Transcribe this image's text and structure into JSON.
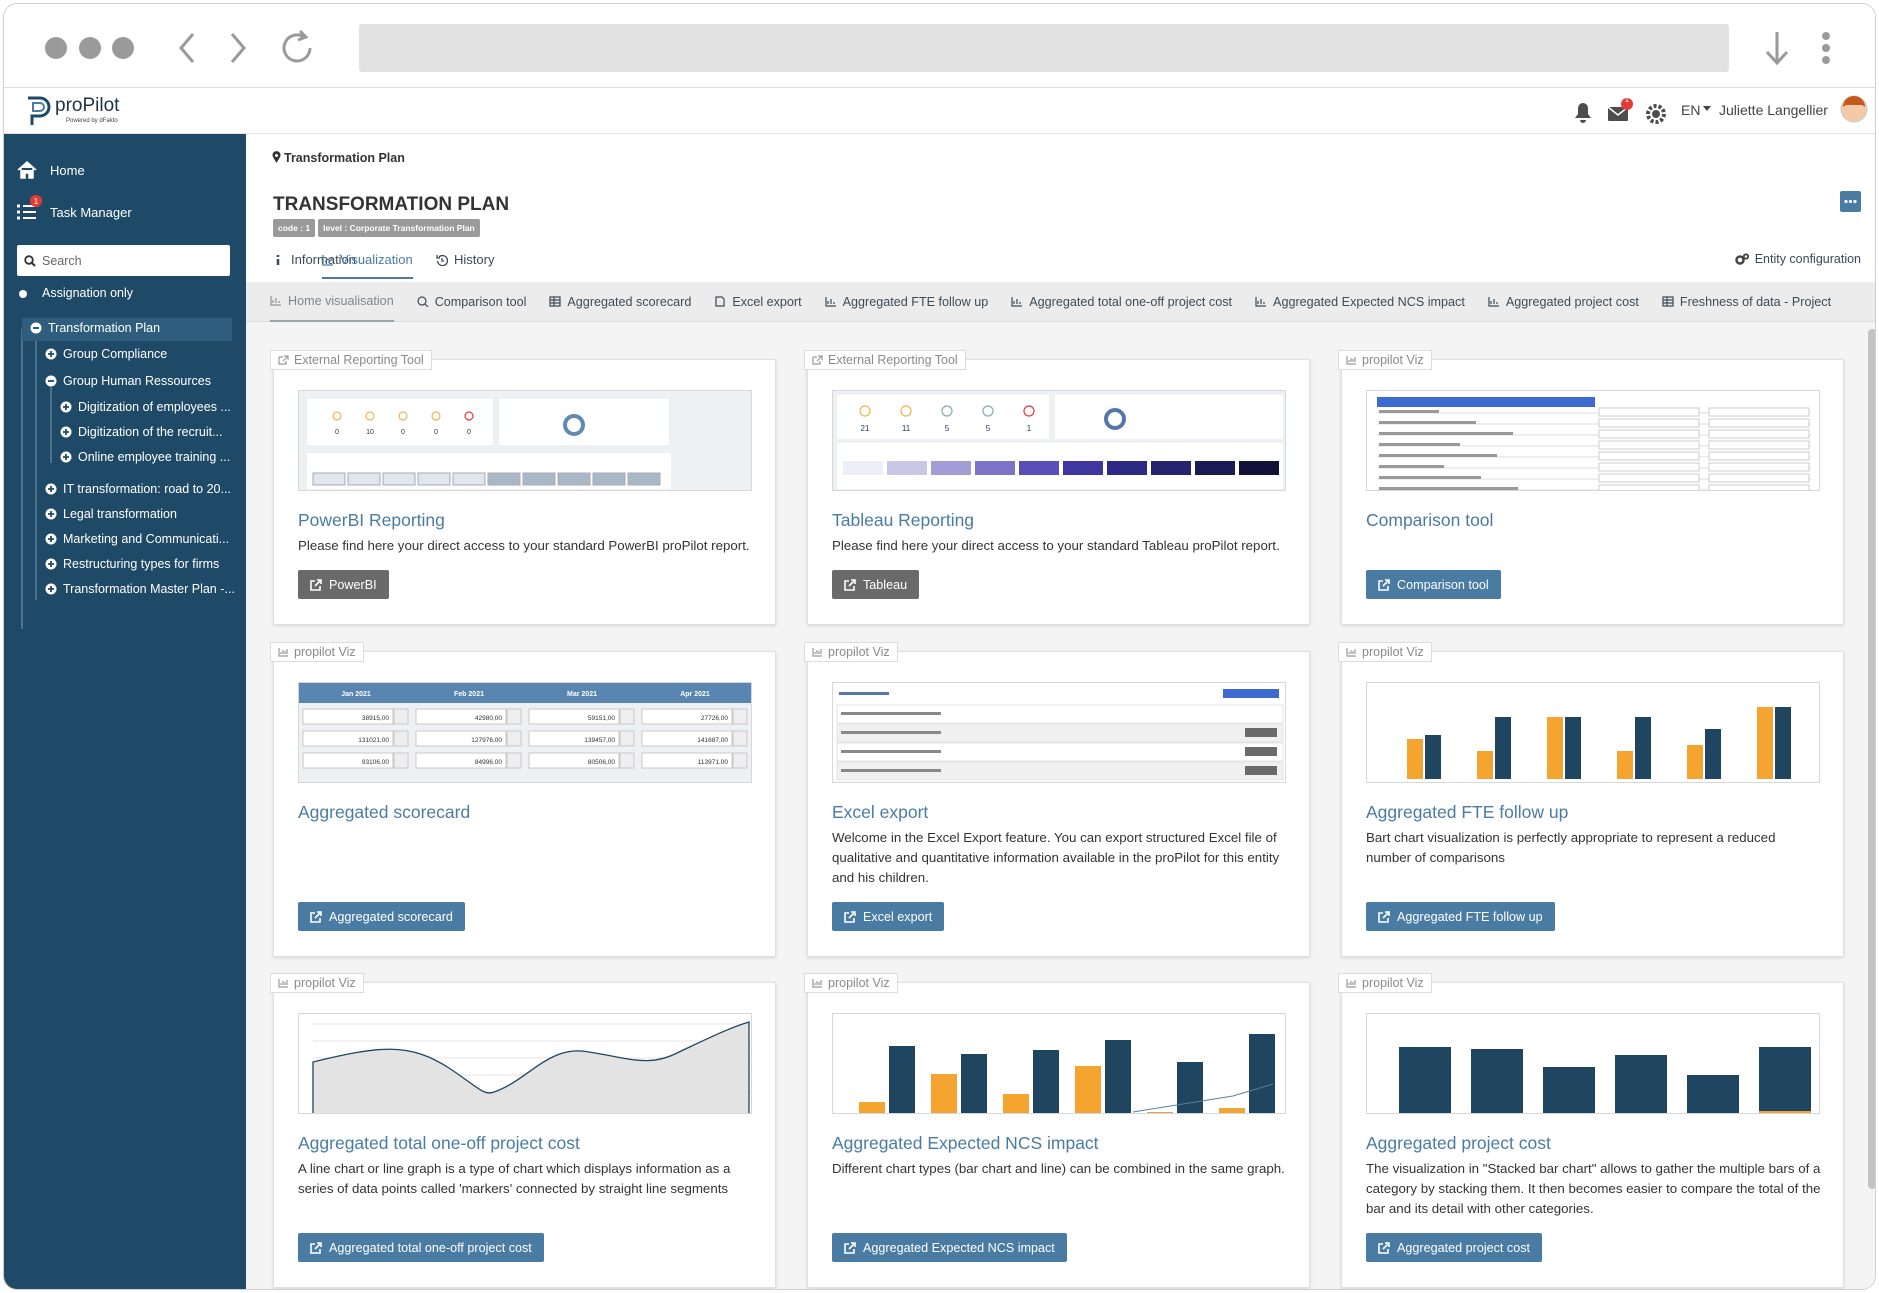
{
  "header": {
    "logo": "proPilot",
    "logo_sub": "Powered by dFakto",
    "mail_badge": "1",
    "language": "EN",
    "user": "Juliette Langellier"
  },
  "sidebar": {
    "nav": [
      {
        "label": "Home"
      },
      {
        "label": "Task Manager",
        "badge": "1"
      }
    ],
    "search_placeholder": "Search",
    "assignation": "Assignation only",
    "tree": [
      {
        "label": "Transformation Plan",
        "level": 0,
        "expanded": true,
        "selected": true
      },
      {
        "label": "Group Compliance",
        "level": 1,
        "expanded": false
      },
      {
        "label": "Group Human Ressources",
        "level": 1,
        "expanded": true
      },
      {
        "label": "Digitization of employees ...",
        "level": 2,
        "expanded": false
      },
      {
        "label": "Digitization of the recruit...",
        "level": 2,
        "expanded": false
      },
      {
        "label": "Online employee training ...",
        "level": 2,
        "expanded": false
      },
      {
        "label": "IT transformation: road to 20...",
        "level": 1,
        "expanded": false
      },
      {
        "label": "Legal transformation",
        "level": 1,
        "expanded": false
      },
      {
        "label": "Marketing and Communicati...",
        "level": 1,
        "expanded": false
      },
      {
        "label": "Restructuring types for firms",
        "level": 1,
        "expanded": false
      },
      {
        "label": "Transformation Master Plan -...",
        "level": 1,
        "expanded": false
      }
    ]
  },
  "breadcrumb": "Transformation Plan",
  "page": {
    "title": "TRANSFORMATION PLAN",
    "tags": [
      "code : 1",
      "level : Corporate Transformation Plan"
    ],
    "tabs": [
      "Information",
      "Visualization",
      "History"
    ],
    "active_tab": 1,
    "entity_config": "Entity configuration"
  },
  "subtabs": [
    "Home visualisation",
    "Comparison tool",
    "Aggregated scorecard",
    "Excel export",
    "Aggregated FTE follow up",
    "Aggregated total one-off project cost",
    "Aggregated Expected NCS impact",
    "Aggregated project cost",
    "Freshness of data - Project"
  ],
  "active_subtab": 0,
  "cards": [
    {
      "source": "External Reporting Tool",
      "title": "PowerBI Reporting",
      "description": "Please find here your direct access to your standard PowerBI proPilot report.",
      "button": "PowerBI",
      "button_style": "dark",
      "preview_counts": [
        0,
        10,
        0,
        0,
        0
      ]
    },
    {
      "source": "External Reporting Tool",
      "title": "Tableau Reporting",
      "description": "Please find here your direct access to your standard Tableau proPilot report.",
      "button": "Tableau",
      "button_style": "dark",
      "preview_counts": [
        21,
        11,
        5,
        5,
        1
      ]
    },
    {
      "source": "propilot Viz",
      "title": "Comparison tool",
      "button": "Comparison tool",
      "button_style": "primary"
    },
    {
      "source": "propilot Viz",
      "title": "Aggregated scorecard",
      "button": "Aggregated scorecard",
      "button_style": "primary",
      "preview_months": [
        "Jan 2021",
        "Feb 2021",
        "Mar 2021",
        "Apr 2021"
      ],
      "preview_rows": [
        [
          "38915,00",
          "42980,00",
          "59151,00",
          "27726,00"
        ],
        [
          "131021,00",
          "127976,00",
          "139457,00",
          "141687,00"
        ],
        [
          "93106,00",
          "84996,00",
          "80506,00",
          "113971,00"
        ]
      ]
    },
    {
      "source": "propilot Viz",
      "title": "Excel export",
      "description": "Welcome in the Excel Export feature. You can export structured Excel file of qualitative and quantitative information available in the proPilot for this entity and his children.",
      "button": "Excel export",
      "button_style": "primary"
    },
    {
      "source": "propilot Viz",
      "title": "Aggregated FTE follow up",
      "description": "Bart chart visualization is perfectly appropriate to represent a reduced number of comparisons",
      "button": "Aggregated FTE follow up",
      "button_style": "primary"
    },
    {
      "source": "propilot Viz",
      "title": "Aggregated total one-off project cost",
      "description": "A line chart or line graph is a type of chart which displays information as a series of data points called 'markers' connected by straight line segments",
      "button": "Aggregated total one-off project cost",
      "button_style": "primary"
    },
    {
      "source": "propilot Viz",
      "title": "Aggregated Expected NCS impact",
      "description": "Different chart types (bar chart and line) can be combined in the same graph.",
      "button": "Aggregated Expected NCS impact",
      "button_style": "primary"
    },
    {
      "source": "propilot Viz",
      "title": "Aggregated project cost",
      "description": "The visualization in \"Stacked bar chart\" allows to gather the multiple bars of a category by stacking them. It then becomes easier to compare the total of the bar and its detail with other categories.",
      "button": "Aggregated project cost",
      "button_style": "primary"
    }
  ]
}
